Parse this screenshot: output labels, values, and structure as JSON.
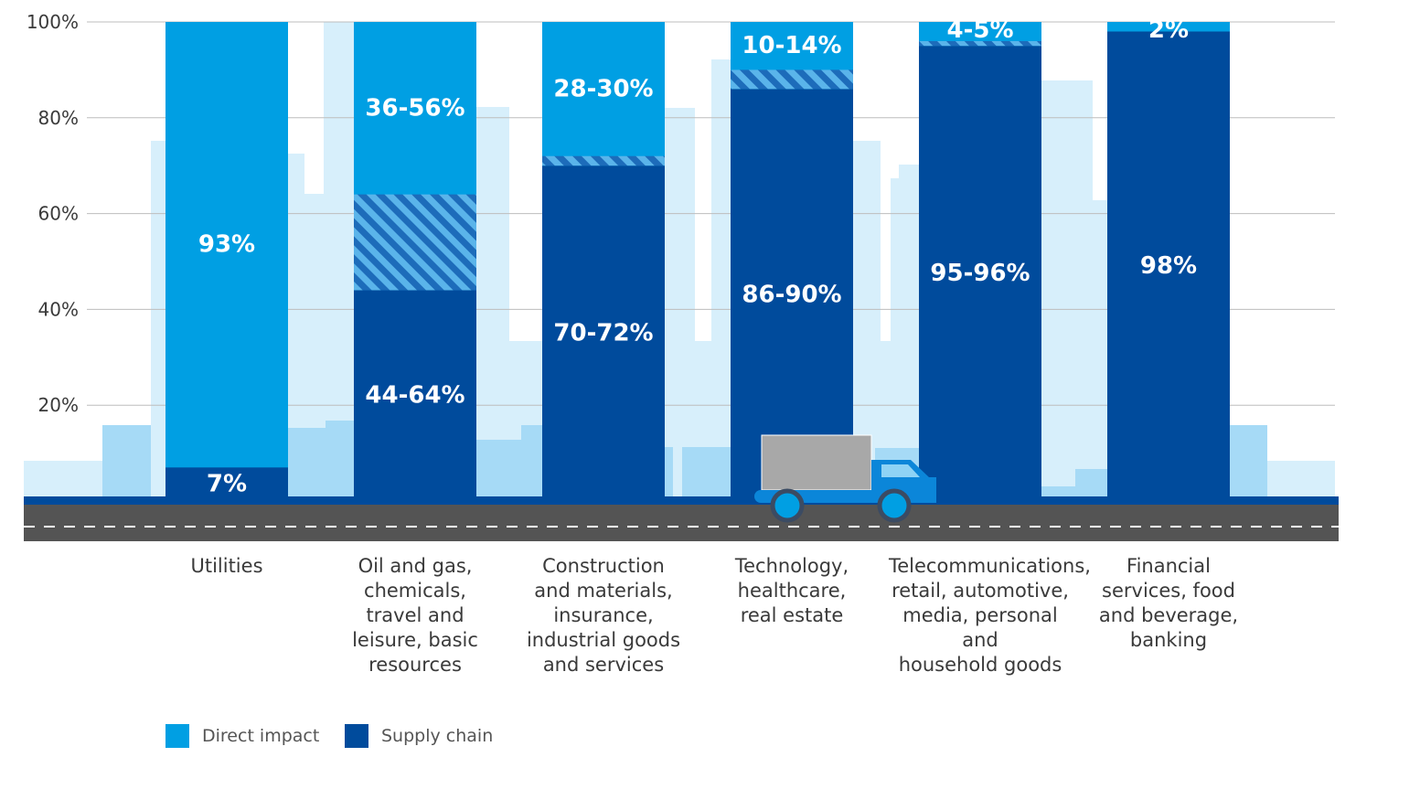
{
  "chart_data": {
    "type": "bar",
    "stacked": true,
    "ylim": [
      0,
      100
    ],
    "yticks": [
      "100%",
      "80%",
      "60%",
      "40%",
      "20%"
    ],
    "grid": true,
    "categories": [
      "Utilities",
      "Oil and gas, chemicals, travel and leisure, basic resources",
      "Construction and materials, insurance, industrial goods and services",
      "Technology, healthcare, real estate",
      "Telecommunications, retail, automotive, media, personal and household goods",
      "Financial services, food and beverage, banking"
    ],
    "category_lines": [
      [
        "Utilities"
      ],
      [
        "Oil and gas,",
        "chemicals,",
        "travel and",
        "leisure, basic",
        "resources"
      ],
      [
        "Construction",
        "and materials,",
        "insurance,",
        "industrial goods",
        "and services"
      ],
      [
        "Technology,",
        "healthcare,",
        "real estate"
      ],
      [
        "Telecommunications,",
        "retail, automotive,",
        "media, personal and",
        "household goods"
      ],
      [
        "Financial",
        "services, food",
        "and beverage,",
        "banking"
      ]
    ],
    "series": [
      {
        "name": "Supply chain",
        "color": "#004b9c",
        "low": [
          7,
          44,
          70,
          86,
          95,
          98
        ],
        "high": [
          7,
          64,
          72,
          90,
          96,
          98
        ],
        "labels": [
          "7%",
          "44-64%",
          "70-72%",
          "86-90%",
          "95-96%",
          "98%"
        ]
      },
      {
        "name": "Direct impact",
        "color": "#009fe3",
        "low": [
          93,
          36,
          28,
          10,
          4,
          2
        ],
        "high": [
          93,
          56,
          30,
          14,
          5,
          2
        ],
        "labels": [
          "93%",
          "36-56%",
          "28-30%",
          "10-14%",
          "4-5%",
          "2%"
        ]
      }
    ],
    "legend": [
      {
        "label": "Direct impact",
        "color": "#009fe3"
      },
      {
        "label": "Supply chain",
        "color": "#004b9c"
      }
    ]
  }
}
